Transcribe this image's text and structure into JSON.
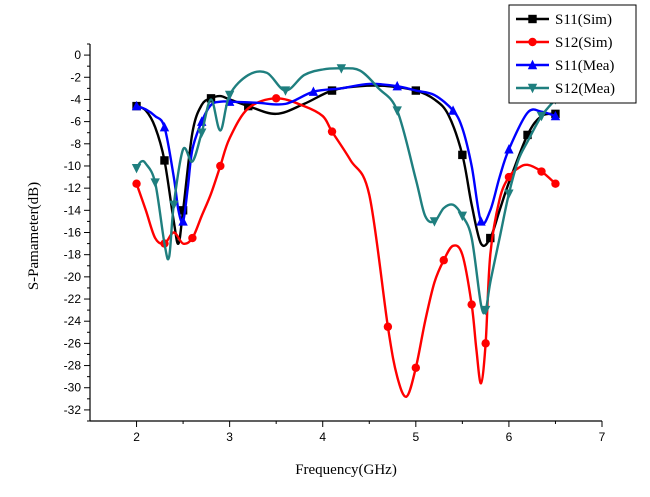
{
  "chart_data": {
    "type": "line",
    "title": "",
    "xlabel": "Frequency(GHz)",
    "ylabel": "S-Pamameter(dB)",
    "xlim": [
      1.5,
      7
    ],
    "ylim": [
      -33,
      1
    ],
    "x_ticks": [
      "2",
      "3",
      "4",
      "5",
      "6",
      "7"
    ],
    "y_ticks": [
      "0",
      "-2",
      "-4",
      "-6",
      "-8",
      "-10",
      "-12",
      "-14",
      "-16",
      "-18",
      "-20",
      "-22",
      "-24",
      "-26",
      "-28",
      "-30",
      "-32"
    ],
    "grid": false,
    "legend_position": "top-right",
    "series": [
      {
        "name": "S11(Sim)",
        "color": "#000000",
        "marker": "square",
        "x": [
          2.0,
          2.1,
          2.2,
          2.3,
          2.4,
          2.45,
          2.5,
          2.6,
          2.7,
          2.8,
          2.9,
          3.0,
          3.2,
          3.5,
          3.8,
          4.1,
          4.4,
          4.7,
          5.0,
          5.2,
          5.35,
          5.5,
          5.6,
          5.7,
          5.8,
          5.9,
          6.0,
          6.2,
          6.35,
          6.5
        ],
        "y": [
          -4.6,
          -5.0,
          -6.5,
          -9.5,
          -15.0,
          -17.0,
          -14.0,
          -7.0,
          -4.5,
          -3.9,
          -3.7,
          -4.0,
          -4.6,
          -5.3,
          -4.4,
          -3.2,
          -2.8,
          -2.8,
          -3.2,
          -4.0,
          -5.4,
          -9.0,
          -13.5,
          -17.0,
          -16.5,
          -14.0,
          -11.5,
          -7.2,
          -5.5,
          -5.3
        ],
        "marker_every": 3
      },
      {
        "name": "S12(Sim)",
        "color": "#ff0000",
        "marker": "circle",
        "x": [
          2.0,
          2.1,
          2.2,
          2.3,
          2.4,
          2.5,
          2.6,
          2.7,
          2.8,
          2.9,
          3.0,
          3.2,
          3.5,
          3.8,
          4.0,
          4.1,
          4.3,
          4.5,
          4.7,
          4.8,
          4.9,
          5.0,
          5.1,
          5.2,
          5.3,
          5.4,
          5.5,
          5.6,
          5.65,
          5.7,
          5.75,
          5.8,
          5.9,
          6.0,
          6.1,
          6.2,
          6.35,
          6.5
        ],
        "y": [
          -11.6,
          -14.0,
          -16.5,
          -17.0,
          -16.0,
          -17.0,
          -16.5,
          -14.5,
          -12.5,
          -10.0,
          -7.5,
          -4.8,
          -3.9,
          -4.6,
          -5.5,
          -6.9,
          -9.5,
          -12.6,
          -24.5,
          -29.0,
          -30.8,
          -28.2,
          -24.0,
          -20.5,
          -18.5,
          -17.2,
          -18.0,
          -22.5,
          -26.5,
          -29.6,
          -26.0,
          -18.0,
          -13.0,
          -11.0,
          -10.2,
          -9.9,
          -10.5,
          -11.6
        ],
        "marker_every": 3
      },
      {
        "name": "S11(Mea)",
        "color": "#0000ff",
        "marker": "triangle-up",
        "x": [
          2.0,
          2.1,
          2.2,
          2.3,
          2.4,
          2.45,
          2.5,
          2.55,
          2.6,
          2.7,
          2.8,
          2.9,
          3.0,
          3.3,
          3.6,
          3.9,
          4.2,
          4.5,
          4.8,
          5.0,
          5.2,
          5.4,
          5.5,
          5.6,
          5.7,
          5.8,
          5.9,
          6.0,
          6.2,
          6.35,
          6.5
        ],
        "y": [
          -4.6,
          -4.9,
          -5.5,
          -6.5,
          -11.0,
          -14.0,
          -15.0,
          -12.0,
          -8.5,
          -6.0,
          -4.5,
          -4.2,
          -4.2,
          -4.3,
          -4.4,
          -3.3,
          -3.0,
          -2.6,
          -2.8,
          -3.2,
          -3.6,
          -5.0,
          -6.6,
          -10.0,
          -15.0,
          -14.0,
          -11.0,
          -8.5,
          -5.2,
          -5.1,
          -5.5
        ],
        "marker_every": 3
      },
      {
        "name": "S12(Mea)",
        "color": "#1f7f7f",
        "marker": "triangle-down",
        "x": [
          2.0,
          2.05,
          2.1,
          2.2,
          2.3,
          2.35,
          2.4,
          2.5,
          2.6,
          2.7,
          2.8,
          2.9,
          3.0,
          3.2,
          3.4,
          3.6,
          3.8,
          4.0,
          4.2,
          4.4,
          4.6,
          4.8,
          5.0,
          5.1,
          5.2,
          5.3,
          5.4,
          5.5,
          5.6,
          5.7,
          5.75,
          5.8,
          5.9,
          6.0,
          6.1,
          6.2,
          6.35,
          6.5
        ],
        "y": [
          -10.2,
          -9.6,
          -9.8,
          -11.5,
          -17.0,
          -18.2,
          -13.5,
          -8.5,
          -9.6,
          -7.0,
          -4.0,
          -6.8,
          -3.6,
          -1.8,
          -1.6,
          -3.2,
          -1.8,
          -1.3,
          -1.2,
          -1.4,
          -3.0,
          -5.0,
          -11.2,
          -14.5,
          -15.0,
          -13.8,
          -13.5,
          -14.5,
          -16.5,
          -22.5,
          -23.0,
          -20.5,
          -16.5,
          -12.5,
          -9.5,
          -7.8,
          -5.5,
          -4.0
        ],
        "marker_every": 3
      }
    ]
  }
}
